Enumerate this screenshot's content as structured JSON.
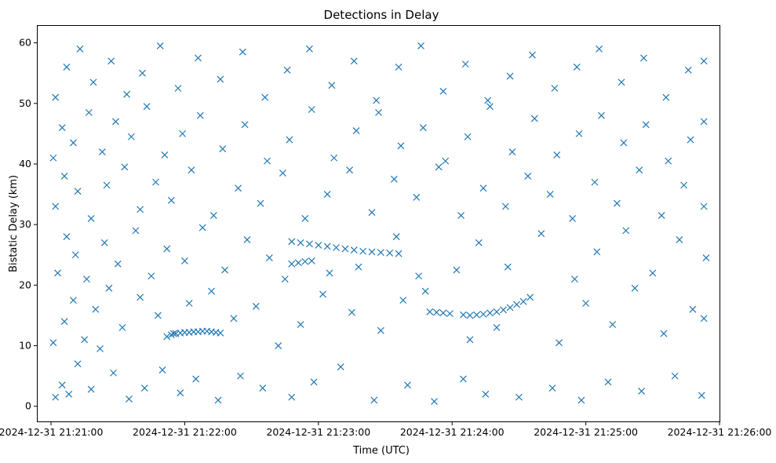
{
  "chart_data": {
    "type": "scatter",
    "title": "Detections in Delay",
    "xlabel": "Time (UTC)",
    "ylabel": "Bistatic Delay (km)",
    "x_type": "datetime",
    "xlim": [
      "2024-12-31 21:20:54",
      "2024-12-31 21:26:00"
    ],
    "ylim": [
      -2.5,
      62.8
    ],
    "x_ticks": [
      {
        "t": "2024-12-31 21:21:00",
        "label": "2024-12-31 21:21:00"
      },
      {
        "t": "2024-12-31 21:22:00",
        "label": "2024-12-31 21:22:00"
      },
      {
        "t": "2024-12-31 21:23:00",
        "label": "2024-12-31 21:23:00"
      },
      {
        "t": "2024-12-31 21:24:00",
        "label": "2024-12-31 21:24:00"
      },
      {
        "t": "2024-12-31 21:25:00",
        "label": "2024-12-31 21:25:00"
      },
      {
        "t": "2024-12-31 21:26:00",
        "label": "2024-12-31 21:26:00"
      }
    ],
    "y_ticks": [
      0,
      10,
      20,
      30,
      40,
      50,
      60
    ],
    "grid": false,
    "legend": "none",
    "marker": "x",
    "color": "#1f77b4",
    "series": [
      {
        "points": [
          [
            "2024-12-31 21:21:02",
            1.5
          ],
          [
            "2024-12-31 21:21:05",
            3.5
          ],
          [
            "2024-12-31 21:21:08",
            2.0
          ],
          [
            "2024-12-31 21:21:12",
            7.0
          ],
          [
            "2024-12-31 21:21:18",
            2.8
          ],
          [
            "2024-12-31 21:21:22",
            9.5
          ],
          [
            "2024-12-31 21:21:28",
            5.5
          ],
          [
            "2024-12-31 21:21:35",
            1.2
          ],
          [
            "2024-12-31 21:21:42",
            3.0
          ],
          [
            "2024-12-31 21:21:50",
            6.0
          ],
          [
            "2024-12-31 21:21:58",
            2.2
          ],
          [
            "2024-12-31 21:22:05",
            4.5
          ],
          [
            "2024-12-31 21:22:15",
            1.0
          ],
          [
            "2024-12-31 21:22:25",
            5.0
          ],
          [
            "2024-12-31 21:22:35",
            3.0
          ],
          [
            "2024-12-31 21:22:48",
            1.5
          ],
          [
            "2024-12-31 21:22:58",
            4.0
          ],
          [
            "2024-12-31 21:23:10",
            6.5
          ],
          [
            "2024-12-31 21:23:25",
            1.0
          ],
          [
            "2024-12-31 21:23:40",
            3.5
          ],
          [
            "2024-12-31 21:23:52",
            0.8
          ],
          [
            "2024-12-31 21:24:05",
            4.5
          ],
          [
            "2024-12-31 21:24:15",
            2.0
          ],
          [
            "2024-12-31 21:24:30",
            1.5
          ],
          [
            "2024-12-31 21:24:45",
            3.0
          ],
          [
            "2024-12-31 21:24:58",
            1.0
          ],
          [
            "2024-12-31 21:25:10",
            4.0
          ],
          [
            "2024-12-31 21:25:25",
            2.5
          ],
          [
            "2024-12-31 21:25:40",
            5.0
          ],
          [
            "2024-12-31 21:25:52",
            1.8
          ],
          [
            "2024-12-31 21:21:01",
            10.5
          ],
          [
            "2024-12-31 21:21:06",
            14.0
          ],
          [
            "2024-12-31 21:21:10",
            17.5
          ],
          [
            "2024-12-31 21:21:15",
            11.0
          ],
          [
            "2024-12-31 21:21:20",
            16.0
          ],
          [
            "2024-12-31 21:21:26",
            19.5
          ],
          [
            "2024-12-31 21:21:32",
            13.0
          ],
          [
            "2024-12-31 21:21:40",
            18.0
          ],
          [
            "2024-12-31 21:21:48",
            15.0
          ],
          [
            "2024-12-31 21:21:55",
            12.0
          ],
          [
            "2024-12-31 21:22:02",
            17.0
          ],
          [
            "2024-12-31 21:22:12",
            19.0
          ],
          [
            "2024-12-31 21:22:22",
            14.5
          ],
          [
            "2024-12-31 21:22:32",
            16.5
          ],
          [
            "2024-12-31 21:22:42",
            10.0
          ],
          [
            "2024-12-31 21:22:52",
            13.5
          ],
          [
            "2024-12-31 21:23:02",
            18.5
          ],
          [
            "2024-12-31 21:23:15",
            15.5
          ],
          [
            "2024-12-31 21:23:28",
            12.5
          ],
          [
            "2024-12-31 21:23:38",
            17.5
          ],
          [
            "2024-12-31 21:23:48",
            19.0
          ],
          [
            "2024-12-31 21:24:08",
            11.0
          ],
          [
            "2024-12-31 21:24:20",
            13.0
          ],
          [
            "2024-12-31 21:24:35",
            18.0
          ],
          [
            "2024-12-31 21:24:48",
            10.5
          ],
          [
            "2024-12-31 21:25:00",
            17.0
          ],
          [
            "2024-12-31 21:25:12",
            13.5
          ],
          [
            "2024-12-31 21:25:22",
            19.5
          ],
          [
            "2024-12-31 21:25:35",
            12.0
          ],
          [
            "2024-12-31 21:25:48",
            16.0
          ],
          [
            "2024-12-31 21:25:53",
            14.5
          ],
          [
            "2024-12-31 21:21:03",
            22.0
          ],
          [
            "2024-12-31 21:21:07",
            28.0
          ],
          [
            "2024-12-31 21:21:11",
            25.0
          ],
          [
            "2024-12-31 21:21:16",
            21.0
          ],
          [
            "2024-12-31 21:21:24",
            27.0
          ],
          [
            "2024-12-31 21:21:30",
            23.5
          ],
          [
            "2024-12-31 21:21:38",
            29.0
          ],
          [
            "2024-12-31 21:21:45",
            21.5
          ],
          [
            "2024-12-31 21:21:52",
            26.0
          ],
          [
            "2024-12-31 21:22:00",
            24.0
          ],
          [
            "2024-12-31 21:22:08",
            29.5
          ],
          [
            "2024-12-31 21:22:18",
            22.5
          ],
          [
            "2024-12-31 21:22:28",
            27.5
          ],
          [
            "2024-12-31 21:22:38",
            24.5
          ],
          [
            "2024-12-31 21:22:45",
            21.0
          ],
          [
            "2024-12-31 21:23:05",
            22.0
          ],
          [
            "2024-12-31 21:23:18",
            23.0
          ],
          [
            "2024-12-31 21:23:35",
            28.0
          ],
          [
            "2024-12-31 21:23:45",
            21.5
          ],
          [
            "2024-12-31 21:24:02",
            22.5
          ],
          [
            "2024-12-31 21:24:12",
            27.0
          ],
          [
            "2024-12-31 21:24:25",
            23.0
          ],
          [
            "2024-12-31 21:24:40",
            28.5
          ],
          [
            "2024-12-31 21:24:55",
            21.0
          ],
          [
            "2024-12-31 21:25:05",
            25.5
          ],
          [
            "2024-12-31 21:25:18",
            29.0
          ],
          [
            "2024-12-31 21:25:30",
            22.0
          ],
          [
            "2024-12-31 21:25:42",
            27.5
          ],
          [
            "2024-12-31 21:25:54",
            24.5
          ],
          [
            "2024-12-31 21:21:02",
            33.0
          ],
          [
            "2024-12-31 21:21:06",
            38.0
          ],
          [
            "2024-12-31 21:21:12",
            35.5
          ],
          [
            "2024-12-31 21:21:18",
            31.0
          ],
          [
            "2024-12-31 21:21:25",
            36.5
          ],
          [
            "2024-12-31 21:21:33",
            39.5
          ],
          [
            "2024-12-31 21:21:40",
            32.5
          ],
          [
            "2024-12-31 21:21:47",
            37.0
          ],
          [
            "2024-12-31 21:21:54",
            34.0
          ],
          [
            "2024-12-31 21:22:03",
            39.0
          ],
          [
            "2024-12-31 21:22:13",
            31.5
          ],
          [
            "2024-12-31 21:22:24",
            36.0
          ],
          [
            "2024-12-31 21:22:34",
            33.5
          ],
          [
            "2024-12-31 21:22:44",
            38.5
          ],
          [
            "2024-12-31 21:22:54",
            31.0
          ],
          [
            "2024-12-31 21:23:04",
            35.0
          ],
          [
            "2024-12-31 21:23:14",
            39.0
          ],
          [
            "2024-12-31 21:23:24",
            32.0
          ],
          [
            "2024-12-31 21:23:34",
            37.5
          ],
          [
            "2024-12-31 21:23:44",
            34.5
          ],
          [
            "2024-12-31 21:23:54",
            39.5
          ],
          [
            "2024-12-31 21:24:04",
            31.5
          ],
          [
            "2024-12-31 21:24:14",
            36.0
          ],
          [
            "2024-12-31 21:24:24",
            33.0
          ],
          [
            "2024-12-31 21:24:34",
            38.0
          ],
          [
            "2024-12-31 21:24:44",
            35.0
          ],
          [
            "2024-12-31 21:24:54",
            31.0
          ],
          [
            "2024-12-31 21:25:04",
            37.0
          ],
          [
            "2024-12-31 21:25:14",
            33.5
          ],
          [
            "2024-12-31 21:25:24",
            39.0
          ],
          [
            "2024-12-31 21:25:34",
            31.5
          ],
          [
            "2024-12-31 21:25:44",
            36.5
          ],
          [
            "2024-12-31 21:25:53",
            33.0
          ],
          [
            "2024-12-31 21:21:01",
            41.0
          ],
          [
            "2024-12-31 21:21:05",
            46.0
          ],
          [
            "2024-12-31 21:21:10",
            43.5
          ],
          [
            "2024-12-31 21:21:17",
            48.5
          ],
          [
            "2024-12-31 21:21:23",
            42.0
          ],
          [
            "2024-12-31 21:21:29",
            47.0
          ],
          [
            "2024-12-31 21:21:36",
            44.5
          ],
          [
            "2024-12-31 21:21:43",
            49.5
          ],
          [
            "2024-12-31 21:21:51",
            41.5
          ],
          [
            "2024-12-31 21:21:59",
            45.0
          ],
          [
            "2024-12-31 21:22:07",
            48.0
          ],
          [
            "2024-12-31 21:22:17",
            42.5
          ],
          [
            "2024-12-31 21:22:27",
            46.5
          ],
          [
            "2024-12-31 21:22:37",
            40.5
          ],
          [
            "2024-12-31 21:22:47",
            44.0
          ],
          [
            "2024-12-31 21:22:57",
            49.0
          ],
          [
            "2024-12-31 21:23:07",
            41.0
          ],
          [
            "2024-12-31 21:23:17",
            45.5
          ],
          [
            "2024-12-31 21:23:27",
            48.5
          ],
          [
            "2024-12-31 21:23:37",
            43.0
          ],
          [
            "2024-12-31 21:23:47",
            46.0
          ],
          [
            "2024-12-31 21:23:57",
            40.5
          ],
          [
            "2024-12-31 21:24:07",
            44.5
          ],
          [
            "2024-12-31 21:24:17",
            49.5
          ],
          [
            "2024-12-31 21:24:27",
            42.0
          ],
          [
            "2024-12-31 21:24:37",
            47.5
          ],
          [
            "2024-12-31 21:24:47",
            41.5
          ],
          [
            "2024-12-31 21:24:57",
            45.0
          ],
          [
            "2024-12-31 21:25:07",
            48.0
          ],
          [
            "2024-12-31 21:25:17",
            43.5
          ],
          [
            "2024-12-31 21:25:27",
            46.5
          ],
          [
            "2024-12-31 21:25:37",
            40.5
          ],
          [
            "2024-12-31 21:25:47",
            44.0
          ],
          [
            "2024-12-31 21:25:53",
            47.0
          ],
          [
            "2024-12-31 21:21:02",
            51.0
          ],
          [
            "2024-12-31 21:21:07",
            56.0
          ],
          [
            "2024-12-31 21:21:13",
            59.0
          ],
          [
            "2024-12-31 21:21:19",
            53.5
          ],
          [
            "2024-12-31 21:21:27",
            57.0
          ],
          [
            "2024-12-31 21:21:34",
            51.5
          ],
          [
            "2024-12-31 21:21:41",
            55.0
          ],
          [
            "2024-12-31 21:21:49",
            59.5
          ],
          [
            "2024-12-31 21:21:57",
            52.5
          ],
          [
            "2024-12-31 21:22:06",
            57.5
          ],
          [
            "2024-12-31 21:22:16",
            54.0
          ],
          [
            "2024-12-31 21:22:26",
            58.5
          ],
          [
            "2024-12-31 21:22:36",
            51.0
          ],
          [
            "2024-12-31 21:22:46",
            55.5
          ],
          [
            "2024-12-31 21:22:56",
            59.0
          ],
          [
            "2024-12-31 21:23:06",
            53.0
          ],
          [
            "2024-12-31 21:23:16",
            57.0
          ],
          [
            "2024-12-31 21:23:26",
            50.5
          ],
          [
            "2024-12-31 21:23:36",
            56.0
          ],
          [
            "2024-12-31 21:23:46",
            59.5
          ],
          [
            "2024-12-31 21:23:56",
            52.0
          ],
          [
            "2024-12-31 21:24:06",
            56.5
          ],
          [
            "2024-12-31 21:24:16",
            50.5
          ],
          [
            "2024-12-31 21:24:26",
            54.5
          ],
          [
            "2024-12-31 21:24:36",
            58.0
          ],
          [
            "2024-12-31 21:24:46",
            52.5
          ],
          [
            "2024-12-31 21:24:56",
            56.0
          ],
          [
            "2024-12-31 21:25:06",
            59.0
          ],
          [
            "2024-12-31 21:25:16",
            53.5
          ],
          [
            "2024-12-31 21:25:26",
            57.5
          ],
          [
            "2024-12-31 21:25:36",
            51.0
          ],
          [
            "2024-12-31 21:25:46",
            55.5
          ],
          [
            "2024-12-31 21:25:53",
            57.0
          ],
          [
            "2024-12-31 21:21:52",
            11.5
          ],
          [
            "2024-12-31 21:21:54",
            11.8
          ],
          [
            "2024-12-31 21:21:56",
            12.0
          ],
          [
            "2024-12-31 21:21:58",
            12.1
          ],
          [
            "2024-12-31 21:22:00",
            12.2
          ],
          [
            "2024-12-31 21:22:02",
            12.2
          ],
          [
            "2024-12-31 21:22:04",
            12.3
          ],
          [
            "2024-12-31 21:22:06",
            12.3
          ],
          [
            "2024-12-31 21:22:08",
            12.4
          ],
          [
            "2024-12-31 21:22:10",
            12.4
          ],
          [
            "2024-12-31 21:22:12",
            12.3
          ],
          [
            "2024-12-31 21:22:14",
            12.2
          ],
          [
            "2024-12-31 21:22:16",
            12.1
          ],
          [
            "2024-12-31 21:22:48",
            23.5
          ],
          [
            "2024-12-31 21:22:51",
            23.7
          ],
          [
            "2024-12-31 21:22:54",
            23.9
          ],
          [
            "2024-12-31 21:22:57",
            24.0
          ],
          [
            "2024-12-31 21:22:48",
            27.2
          ],
          [
            "2024-12-31 21:22:52",
            27.0
          ],
          [
            "2024-12-31 21:22:56",
            26.8
          ],
          [
            "2024-12-31 21:23:00",
            26.6
          ],
          [
            "2024-12-31 21:23:04",
            26.4
          ],
          [
            "2024-12-31 21:23:08",
            26.2
          ],
          [
            "2024-12-31 21:23:12",
            26.0
          ],
          [
            "2024-12-31 21:23:16",
            25.8
          ],
          [
            "2024-12-31 21:23:20",
            25.6
          ],
          [
            "2024-12-31 21:23:24",
            25.5
          ],
          [
            "2024-12-31 21:23:28",
            25.4
          ],
          [
            "2024-12-31 21:23:32",
            25.3
          ],
          [
            "2024-12-31 21:23:36",
            25.2
          ],
          [
            "2024-12-31 21:23:50",
            15.6
          ],
          [
            "2024-12-31 21:23:53",
            15.5
          ],
          [
            "2024-12-31 21:23:56",
            15.4
          ],
          [
            "2024-12-31 21:23:59",
            15.3
          ],
          [
            "2024-12-31 21:24:05",
            15.1
          ],
          [
            "2024-12-31 21:24:08",
            15.0
          ],
          [
            "2024-12-31 21:24:11",
            15.1
          ],
          [
            "2024-12-31 21:24:14",
            15.2
          ],
          [
            "2024-12-31 21:24:17",
            15.4
          ],
          [
            "2024-12-31 21:24:20",
            15.6
          ],
          [
            "2024-12-31 21:24:23",
            15.9
          ],
          [
            "2024-12-31 21:24:26",
            16.3
          ],
          [
            "2024-12-31 21:24:29",
            16.8
          ],
          [
            "2024-12-31 21:24:32",
            17.3
          ]
        ]
      }
    ]
  }
}
